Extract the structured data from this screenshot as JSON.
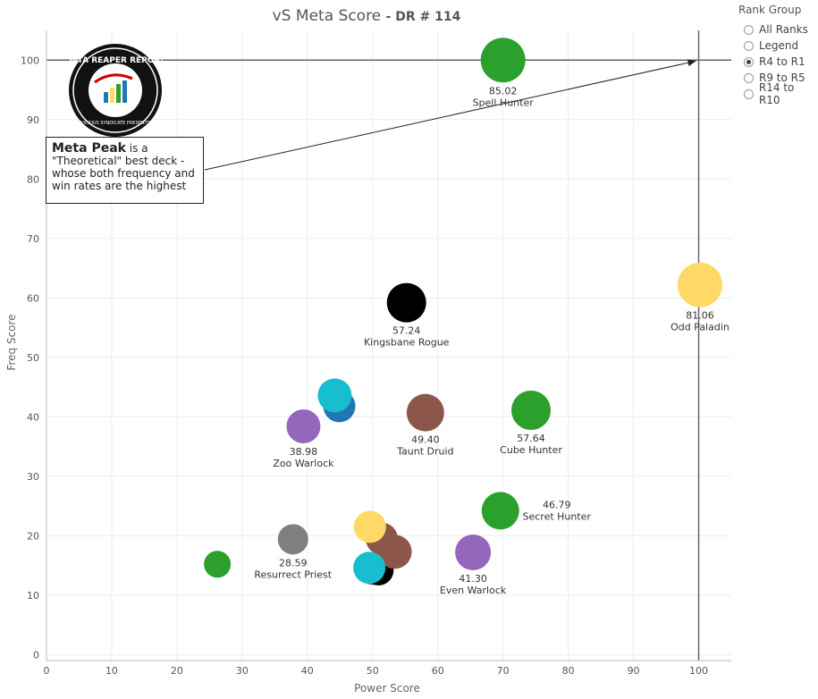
{
  "title": {
    "main": "vS Meta Score",
    "sub": "DR # 114"
  },
  "legend": {
    "title": "Rank Group",
    "options": [
      "All Ranks",
      "Legend",
      "R4 to R1",
      "R9 to R5",
      "R14 to R10"
    ],
    "selected": "R4 to R1"
  },
  "annotation": {
    "highlight": "Meta Peak",
    "text": "is a \"Theoretical\" best deck - whose both frequency and win rates are the highest"
  },
  "logo": {
    "text": "DATA REAPER REPORT",
    "subtext": "VICIOUS SYNDICATE PRESENTS"
  },
  "chart_data": {
    "type": "scatter",
    "xlabel": "Power Score",
    "ylabel": "Freq Score",
    "xlim": [
      0,
      105
    ],
    "ylim": [
      -1,
      105
    ],
    "xticks": [
      0,
      10,
      20,
      30,
      40,
      50,
      60,
      70,
      80,
      90,
      100
    ],
    "yticks": [
      0,
      10,
      20,
      30,
      40,
      50,
      60,
      70,
      80,
      90,
      100
    ],
    "grid": true,
    "reference_lines": {
      "x": 100,
      "y": 100
    },
    "points": [
      {
        "x": 70,
        "y": 100,
        "size": 25,
        "color": "#2ca02c",
        "value": "85.02",
        "name": "Spell Hunter",
        "label_pos": "below"
      },
      {
        "x": 100.2,
        "y": 62.2,
        "size": 25,
        "color": "#ffd966",
        "value": "81.06",
        "name": "Odd Paladin",
        "label_pos": "below"
      },
      {
        "x": 55.2,
        "y": 59.2,
        "size": 22,
        "color": "#000000",
        "value": "57.24",
        "name": "Kingsbane Rogue",
        "label_pos": "below"
      },
      {
        "x": 74.3,
        "y": 41.1,
        "size": 22,
        "color": "#2ca02c",
        "value": "57.64",
        "name": "Cube Hunter",
        "label_pos": "below"
      },
      {
        "x": 58.1,
        "y": 40.7,
        "size": 21,
        "color": "#8c564b",
        "value": "49.40",
        "name": "Taunt Druid",
        "label_pos": "below"
      },
      {
        "x": 44.9,
        "y": 41.8,
        "size": 18,
        "color": "#1f77b4",
        "value": "",
        "name": "",
        "label_pos": "none"
      },
      {
        "x": 44.2,
        "y": 43.6,
        "size": 19,
        "color": "#17becf",
        "value": "",
        "name": "",
        "label_pos": "none"
      },
      {
        "x": 39.4,
        "y": 38.4,
        "size": 19,
        "color": "#9467bd",
        "value": "38.98",
        "name": "Zoo Warlock",
        "label_pos": "below"
      },
      {
        "x": 69.6,
        "y": 24.2,
        "size": 21,
        "color": "#2ca02c",
        "value": "46.79",
        "name": "Secret Hunter",
        "label_pos": "right"
      },
      {
        "x": 65.4,
        "y": 17.2,
        "size": 20,
        "color": "#9467bd",
        "value": "41.30",
        "name": "Even Warlock",
        "label_pos": "below"
      },
      {
        "x": 37.8,
        "y": 19.4,
        "size": 17,
        "color": "#7f7f7f",
        "value": "28.59",
        "name": "Resurrect Priest",
        "label_pos": "below"
      },
      {
        "x": 26.2,
        "y": 15.2,
        "size": 15,
        "color": "#2ca02c",
        "value": "",
        "name": "",
        "label_pos": "none"
      },
      {
        "x": 50.0,
        "y": 14.0,
        "size": 15,
        "color": "#d62728",
        "value": "",
        "name": "",
        "label_pos": "none"
      },
      {
        "x": 50.9,
        "y": 14.2,
        "size": 17,
        "color": "#000000",
        "value": "",
        "name": "",
        "label_pos": "none"
      },
      {
        "x": 51.4,
        "y": 19.5,
        "size": 18,
        "color": "#8c564b",
        "value": "",
        "name": "",
        "label_pos": "none"
      },
      {
        "x": 53.4,
        "y": 17.3,
        "size": 19,
        "color": "#8c564b",
        "value": "",
        "name": "",
        "label_pos": "none"
      },
      {
        "x": 49.6,
        "y": 21.5,
        "size": 18,
        "color": "#ffd966",
        "value": "",
        "name": "",
        "label_pos": "none"
      },
      {
        "x": 49.5,
        "y": 14.6,
        "size": 18,
        "color": "#17becf",
        "value": "",
        "name": "",
        "label_pos": "none"
      }
    ]
  }
}
